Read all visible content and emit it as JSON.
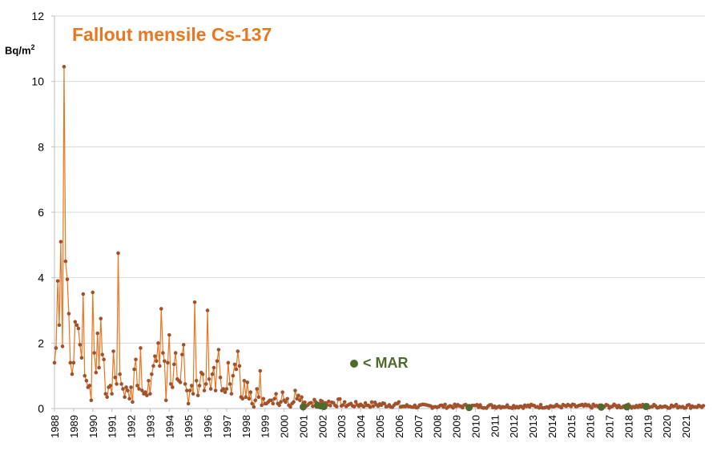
{
  "chart_data": {
    "type": "line",
    "title": "Fallout mensile Cs-137",
    "ylabel": "Bq/m",
    "ylabel_superscript": "2",
    "ylim": [
      0,
      12
    ],
    "yticks": [
      "0",
      "2",
      "4",
      "6",
      "8",
      "10",
      "12"
    ],
    "xlim": [
      1988,
      2022
    ],
    "xticks": [
      "1988",
      "1989",
      "1990",
      "1991",
      "1992",
      "1993",
      "1994",
      "1995",
      "1996",
      "1997",
      "1998",
      "1999",
      "2000",
      "2001",
      "2002",
      "2003",
      "2004",
      "2005",
      "2006",
      "2007",
      "2008",
      "2009",
      "2010",
      "2011",
      "2012",
      "2013",
      "2014",
      "2015",
      "2016",
      "2017",
      "2018",
      "2019",
      "2020",
      "2021"
    ],
    "grid": true,
    "series": [
      {
        "name": "Fallout mensile Cs-137",
        "color": "#E87722",
        "marker_color": "#A0522D",
        "x": [
          1988.0,
          1988.08,
          1988.17,
          1988.25,
          1988.33,
          1988.42,
          1988.5,
          1988.58,
          1988.67,
          1988.75,
          1988.83,
          1988.92,
          1989.0,
          1989.08,
          1989.17,
          1989.25,
          1989.33,
          1989.42,
          1989.5,
          1989.58,
          1989.67,
          1989.75,
          1989.83,
          1989.92,
          1990.0,
          1990.08,
          1990.17,
          1990.25,
          1990.33,
          1990.42,
          1990.5,
          1990.58,
          1990.67,
          1990.75,
          1990.83,
          1990.92,
          1991.0,
          1991.08,
          1991.17,
          1991.25,
          1991.33,
          1991.42,
          1991.5,
          1991.58,
          1991.67,
          1991.75,
          1991.83,
          1991.92,
          1992.0,
          1992.08,
          1992.17,
          1992.25,
          1992.33,
          1992.42,
          1992.5,
          1992.58,
          1992.67,
          1992.75,
          1992.83,
          1992.92,
          1993.0,
          1993.08,
          1993.17,
          1993.25,
          1993.33,
          1993.42,
          1993.5,
          1993.58,
          1993.67,
          1993.75,
          1993.83,
          1993.92,
          1994.0,
          1994.08,
          1994.17,
          1994.25,
          1994.33,
          1994.42,
          1994.5,
          1994.58,
          1994.67,
          1994.75,
          1994.83,
          1994.92,
          1995.0,
          1995.08,
          1995.17,
          1995.25,
          1995.33,
          1995.42,
          1995.5,
          1995.58,
          1995.67,
          1995.75,
          1995.83,
          1995.92,
          1996.0,
          1996.08,
          1996.17,
          1996.25,
          1996.33,
          1996.42,
          1996.5,
          1996.58,
          1996.67,
          1996.75,
          1996.83,
          1996.92,
          1997.0,
          1997.08,
          1997.17,
          1997.25,
          1997.33,
          1997.42,
          1997.5,
          1997.58,
          1997.67,
          1997.75,
          1997.83,
          1997.92,
          1998.0,
          1998.08,
          1998.17,
          1998.25,
          1998.33,
          1998.42,
          1998.5,
          1998.58,
          1998.67,
          1998.75,
          1998.83,
          1998.92,
          1999.0,
          1999.08,
          1999.17,
          1999.25,
          1999.33,
          1999.42,
          1999.5,
          1999.58,
          1999.67,
          1999.75,
          1999.83,
          1999.92,
          2000.0,
          2000.08,
          2000.17,
          2000.25,
          2000.33,
          2000.42,
          2000.5,
          2000.58,
          2000.67,
          2000.75,
          2000.83,
          2000.92
        ],
        "values": [
          1.4,
          1.85,
          3.9,
          2.55,
          5.1,
          1.9,
          10.45,
          4.5,
          3.95,
          2.9,
          1.4,
          1.05,
          1.4,
          2.65,
          2.55,
          2.45,
          1.95,
          1.55,
          3.5,
          1.0,
          0.85,
          0.65,
          0.7,
          0.25,
          3.55,
          1.7,
          1.1,
          2.3,
          1.25,
          2.75,
          1.65,
          1.5,
          0.45,
          0.35,
          0.65,
          0.7,
          0.45,
          1.75,
          0.95,
          0.75,
          4.75,
          1.05,
          0.75,
          0.6,
          0.35,
          0.65,
          0.55,
          0.3,
          0.65,
          0.2,
          1.2,
          1.5,
          0.7,
          0.6,
          1.85,
          0.55,
          0.45,
          0.5,
          0.4,
          0.85,
          0.45,
          1.05,
          1.3,
          1.6,
          1.45,
          2.0,
          1.3,
          3.05,
          1.7,
          1.45,
          0.25,
          1.4,
          2.25,
          0.75,
          0.65,
          1.35,
          1.7,
          0.9,
          0.85,
          0.8,
          1.65,
          1.95,
          0.75,
          0.55,
          0.15,
          0.55,
          0.7,
          0.45,
          3.25,
          0.85,
          0.4,
          0.7,
          1.1,
          1.05,
          0.55,
          0.75,
          3.0,
          0.9,
          0.6,
          1.05,
          1.25,
          0.55,
          1.45,
          1.8,
          0.95,
          0.55,
          0.6,
          0.5,
          0.6,
          1.4,
          0.75,
          0.45,
          1.0,
          1.35,
          1.2,
          1.75,
          1.3,
          0.35,
          0.3,
          0.85,
          0.35,
          0.8,
          0.3,
          0.5,
          0.15,
          0.05,
          0.25,
          0.6,
          0.35,
          1.15,
          0.1,
          0.3,
          0.15,
          0.15,
          0.2,
          0.25,
          0.25,
          0.15,
          0.3,
          0.45,
          0.15,
          0.1,
          0.2,
          0.5,
          0.25,
          0.2,
          0.3,
          0.1,
          0.05,
          0.15,
          0.2,
          0.55,
          0.3,
          0.4,
          0.25,
          0.35
        ]
      },
      {
        "name": "< MAR",
        "color": "#4E6A2E",
        "x": [
          2001.0,
          2001.75,
          2001.92,
          2002.08,
          2009.67,
          2016.58,
          2017.92,
          2018.92
        ],
        "values": [
          0.05,
          0.1,
          0.08,
          0.06,
          0.03,
          0.04,
          0.05,
          0.06
        ]
      }
    ],
    "annotation": "< MAR"
  }
}
